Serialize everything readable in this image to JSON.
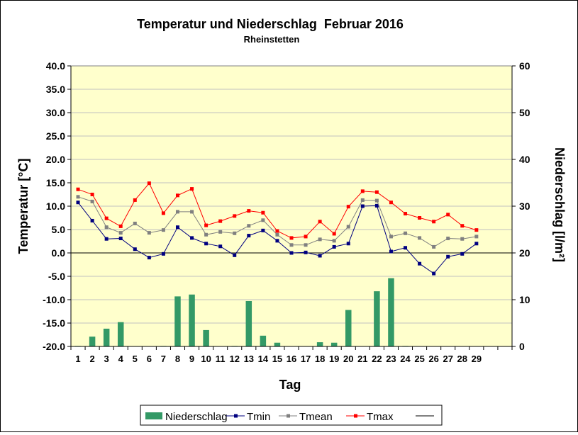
{
  "chart_data": {
    "type": "bar+line",
    "title": "Temperatur und Niederschlag  Februar 2016",
    "subtitle": "Rheinstetten",
    "xlabel": "Tag",
    "ylabel_left": "Temperatur [°C]",
    "ylabel_right": "Niederschlag [l/m²]",
    "ylim_left": [
      -20,
      40
    ],
    "ylim_right": [
      0,
      60
    ],
    "yticks_left": [
      "40.0",
      "35.0",
      "30.0",
      "25.0",
      "20.0",
      "15.0",
      "10.0",
      "5.0",
      "0.0",
      "-5.0",
      "-10.0",
      "-15.0",
      "-20.0"
    ],
    "yticks_right": [
      "60",
      "50",
      "40",
      "30",
      "20",
      "10",
      "0"
    ],
    "categories": [
      "1",
      "2",
      "3",
      "4",
      "5",
      "6",
      "7",
      "8",
      "9",
      "10",
      "11",
      "12",
      "13",
      "14",
      "15",
      "16",
      "17",
      "18",
      "19",
      "20",
      "21",
      "22",
      "23",
      "24",
      "25",
      "26",
      "27",
      "28",
      "29"
    ],
    "grid": "horizontal",
    "legend_placement": "bottom",
    "series": [
      {
        "name": "Niederschlag",
        "kind": "bar",
        "axis": "right",
        "color": "#339966",
        "values": [
          0.1,
          2.1,
          3.8,
          5.2,
          0,
          0,
          0.1,
          10.7,
          11.1,
          3.5,
          0,
          0.1,
          9.7,
          2.3,
          0.8,
          0,
          0,
          0.9,
          0.8,
          7.8,
          0,
          11.8,
          14.6,
          0.1,
          0,
          0,
          0,
          0,
          0
        ]
      },
      {
        "name": "Tmin",
        "kind": "line",
        "axis": "left",
        "color": "#000080",
        "values": [
          10.8,
          6.9,
          3.0,
          3.1,
          0.8,
          -1.0,
          -0.2,
          5.5,
          3.2,
          2.0,
          1.4,
          -0.5,
          3.7,
          4.8,
          2.6,
          0.0,
          0.1,
          -0.6,
          1.3,
          2.0,
          10.0,
          10.1,
          0.3,
          1.1,
          -2.3,
          -4.4,
          -0.8,
          -0.2,
          2.0
        ]
      },
      {
        "name": "Tmean",
        "kind": "line",
        "axis": "left",
        "color": "#808080",
        "values": [
          12.0,
          11.0,
          5.5,
          4.3,
          6.3,
          4.3,
          4.9,
          8.8,
          8.8,
          3.9,
          4.5,
          4.2,
          5.8,
          7.0,
          3.9,
          1.7,
          1.7,
          2.9,
          2.6,
          5.6,
          11.3,
          11.2,
          3.5,
          4.2,
          3.2,
          1.3,
          3.1,
          3.0,
          3.5
        ]
      },
      {
        "name": "Tmax",
        "kind": "line",
        "axis": "left",
        "color": "#ff0000",
        "values": [
          13.6,
          12.5,
          7.4,
          5.7,
          11.3,
          14.9,
          8.5,
          12.3,
          13.7,
          5.9,
          6.8,
          7.9,
          9.0,
          8.6,
          4.7,
          3.2,
          3.5,
          6.7,
          4.1,
          9.9,
          13.2,
          13.0,
          10.8,
          8.4,
          7.5,
          6.7,
          8.2,
          5.8,
          4.9
        ]
      }
    ],
    "legend": [
      "Niederschlag",
      "Tmin",
      "Tmean",
      "Tmax",
      ""
    ],
    "colors": {
      "plot_background": "#ffffcc",
      "gridline": "#c0c0c0",
      "zero_line": "#000000"
    }
  }
}
